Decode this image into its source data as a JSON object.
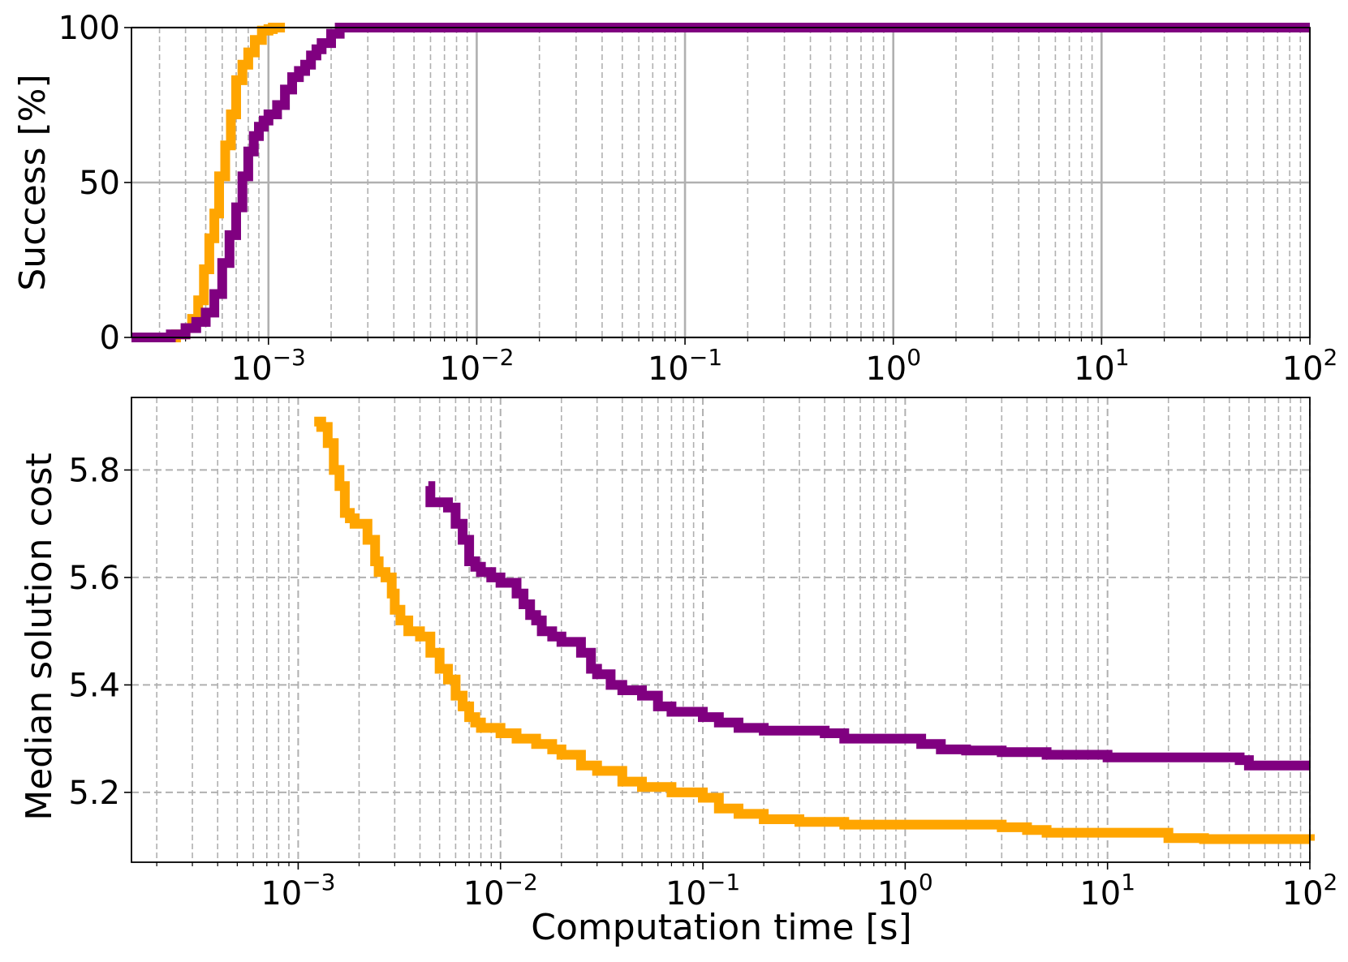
{
  "chart_data": [
    {
      "type": "line",
      "title": "",
      "xlabel": "",
      "ylabel": "Success [%]",
      "xscale": "log",
      "xlim": [
        0.00022,
        100
      ],
      "ylim": [
        0,
        100
      ],
      "grid": "major solid, minor dashed (x)",
      "legend": "none",
      "yticks": [
        0,
        50,
        100
      ],
      "xtick_labels": [
        {
          "base": "10",
          "exp": "−3",
          "value": 0.001
        },
        {
          "base": "10",
          "exp": "−2",
          "value": 0.01
        },
        {
          "base": "10",
          "exp": "−1",
          "value": 0.1
        },
        {
          "base": "10",
          "exp": "0",
          "value": 1
        },
        {
          "base": "10",
          "exp": "1",
          "value": 10
        },
        {
          "base": "10",
          "exp": "2",
          "value": 100
        }
      ],
      "series": [
        {
          "color": "#FFA500",
          "x": [
            0.00022,
            0.00033,
            0.00036,
            0.0004,
            0.00043,
            0.00046,
            0.00049,
            0.00052,
            0.00055,
            0.00058,
            0.00062,
            0.00066,
            0.0007,
            0.00075,
            0.0008,
            0.00086,
            0.00093,
            0.001,
            0.00105,
            0.00115,
            0.0012
          ],
          "y": [
            0,
            0,
            1,
            3,
            6,
            12,
            22,
            32,
            40,
            52,
            62,
            72,
            83,
            88,
            92,
            96,
            99,
            99.5,
            100,
            100,
            100
          ]
        },
        {
          "color": "#800080",
          "x": [
            0.00022,
            0.0003,
            0.00034,
            0.0004,
            0.00045,
            0.0005,
            0.00055,
            0.0006,
            0.00065,
            0.0007,
            0.00075,
            0.0008,
            0.00085,
            0.0009,
            0.00095,
            0.001,
            0.0011,
            0.0012,
            0.0013,
            0.0014,
            0.0015,
            0.0016,
            0.0017,
            0.0018,
            0.002,
            0.0022,
            0.003,
            0.0045,
            100
          ],
          "y": [
            0,
            0,
            1,
            3,
            5,
            8,
            14,
            24,
            33,
            42,
            52,
            60,
            65,
            68,
            70,
            72,
            75,
            80,
            84,
            86,
            88,
            91,
            93,
            95,
            98,
            100,
            100,
            100,
            100
          ]
        }
      ]
    },
    {
      "type": "line",
      "title": "",
      "xlabel": "Computation time [s]",
      "ylabel": "Median solution cost",
      "xscale": "log",
      "xlim": [
        0.00015,
        100
      ],
      "ylim": [
        5.07,
        5.935
      ],
      "grid": "dashed, major and minor x",
      "legend": "none",
      "yticks": [
        5.2,
        5.4,
        5.6,
        5.8
      ],
      "xtick_labels": [
        {
          "base": "10",
          "exp": "−3",
          "value": 0.001
        },
        {
          "base": "10",
          "exp": "−2",
          "value": 0.01
        },
        {
          "base": "10",
          "exp": "−1",
          "value": 0.1
        },
        {
          "base": "10",
          "exp": "0",
          "value": 1
        },
        {
          "base": "10",
          "exp": "1",
          "value": 10
        },
        {
          "base": "10",
          "exp": "2",
          "value": 100
        }
      ],
      "series": [
        {
          "color": "#FFA500",
          "x": [
            0.0012,
            0.0013,
            0.0014,
            0.0015,
            0.0016,
            0.0017,
            0.0018,
            0.0019,
            0.002,
            0.0022,
            0.0024,
            0.0025,
            0.0027,
            0.0029,
            0.003,
            0.0032,
            0.0035,
            0.0038,
            0.004,
            0.0045,
            0.005,
            0.0055,
            0.006,
            0.0065,
            0.007,
            0.0075,
            0.008,
            0.01,
            0.012,
            0.015,
            0.018,
            0.02,
            0.025,
            0.03,
            0.04,
            0.05,
            0.07,
            0.1,
            0.12,
            0.15,
            0.2,
            0.3,
            0.5,
            1,
            2,
            3,
            4,
            5,
            10,
            18,
            20,
            30,
            100
          ],
          "y": [
            5.89,
            5.88,
            5.85,
            5.8,
            5.77,
            5.72,
            5.71,
            5.7,
            5.7,
            5.67,
            5.63,
            5.61,
            5.6,
            5.57,
            5.54,
            5.52,
            5.5,
            5.5,
            5.49,
            5.46,
            5.43,
            5.41,
            5.38,
            5.36,
            5.34,
            5.33,
            5.32,
            5.31,
            5.3,
            5.29,
            5.28,
            5.27,
            5.25,
            5.24,
            5.22,
            5.21,
            5.2,
            5.19,
            5.17,
            5.16,
            5.15,
            5.145,
            5.14,
            5.14,
            5.14,
            5.135,
            5.13,
            5.125,
            5.125,
            5.125,
            5.115,
            5.113,
            5.11
          ]
        },
        {
          "color": "#800080",
          "x": [
            0.0044,
            0.0045,
            0.005,
            0.0055,
            0.006,
            0.0065,
            0.007,
            0.0075,
            0.008,
            0.009,
            0.01,
            0.012,
            0.013,
            0.014,
            0.015,
            0.016,
            0.018,
            0.02,
            0.025,
            0.028,
            0.03,
            0.035,
            0.04,
            0.05,
            0.06,
            0.07,
            0.1,
            0.12,
            0.15,
            0.2,
            0.4,
            0.5,
            1,
            1.2,
            1.5,
            2,
            3,
            5,
            10,
            20,
            45,
            50,
            100
          ],
          "y": [
            5.77,
            5.74,
            5.74,
            5.73,
            5.7,
            5.67,
            5.63,
            5.62,
            5.61,
            5.6,
            5.59,
            5.57,
            5.55,
            5.53,
            5.52,
            5.5,
            5.49,
            5.48,
            5.46,
            5.43,
            5.42,
            5.4,
            5.39,
            5.38,
            5.36,
            5.35,
            5.34,
            5.33,
            5.32,
            5.315,
            5.31,
            5.3,
            5.3,
            5.29,
            5.28,
            5.278,
            5.275,
            5.27,
            5.265,
            5.265,
            5.26,
            5.25,
            5.25
          ]
        }
      ]
    }
  ]
}
